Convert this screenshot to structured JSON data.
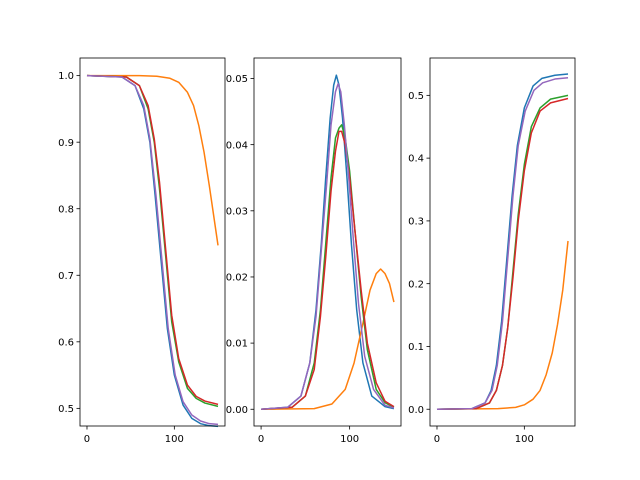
{
  "chart_data": [
    {
      "type": "line",
      "title": "",
      "xlabel": "",
      "ylabel": "",
      "xlim": [
        -8,
        158
      ],
      "ylim": [
        0.4735,
        1.0265
      ],
      "x_ticks": [
        0,
        100
      ],
      "x_tick_labels": [
        "0",
        "100"
      ],
      "y_ticks": [
        0.5,
        0.6,
        0.7,
        0.8,
        0.9,
        1.0
      ],
      "y_tick_labels": [
        "0.5",
        "0.6",
        "0.7",
        "0.8",
        "0.9",
        "1.0"
      ],
      "grid": false,
      "series": [
        {
          "color": "#1f77b4",
          "points": [
            [
              0,
              1.0
            ],
            [
              40,
              0.998
            ],
            [
              55,
              0.985
            ],
            [
              65,
              0.95
            ],
            [
              72,
              0.9
            ],
            [
              78,
              0.82
            ],
            [
              85,
              0.72
            ],
            [
              92,
              0.62
            ],
            [
              100,
              0.55
            ],
            [
              110,
              0.505
            ],
            [
              120,
              0.485
            ],
            [
              130,
              0.477
            ],
            [
              140,
              0.474
            ],
            [
              150,
              0.473
            ]
          ]
        },
        {
          "color": "#ff7f0e",
          "points": [
            [
              0,
              1.0
            ],
            [
              60,
              1.0
            ],
            [
              80,
              0.999
            ],
            [
              95,
              0.996
            ],
            [
              105,
              0.99
            ],
            [
              115,
              0.975
            ],
            [
              122,
              0.955
            ],
            [
              128,
              0.925
            ],
            [
              134,
              0.885
            ],
            [
              140,
              0.835
            ],
            [
              145,
              0.79
            ],
            [
              150,
              0.745
            ]
          ]
        },
        {
          "color": "#2ca02c",
          "points": [
            [
              0,
              1.0
            ],
            [
              45,
              0.998
            ],
            [
              60,
              0.985
            ],
            [
              70,
              0.95
            ],
            [
              77,
              0.9
            ],
            [
              83,
              0.83
            ],
            [
              90,
              0.73
            ],
            [
              97,
              0.63
            ],
            [
              105,
              0.57
            ],
            [
              115,
              0.53
            ],
            [
              125,
              0.515
            ],
            [
              135,
              0.508
            ],
            [
              150,
              0.503
            ]
          ]
        },
        {
          "color": "#d62728",
          "points": [
            [
              0,
              1.0
            ],
            [
              45,
              0.998
            ],
            [
              60,
              0.985
            ],
            [
              70,
              0.955
            ],
            [
              77,
              0.905
            ],
            [
              83,
              0.84
            ],
            [
              90,
              0.74
            ],
            [
              97,
              0.64
            ],
            [
              105,
              0.575
            ],
            [
              115,
              0.535
            ],
            [
              125,
              0.518
            ],
            [
              135,
              0.511
            ],
            [
              150,
              0.506
            ]
          ]
        },
        {
          "color": "#9467bd",
          "points": [
            [
              0,
              1.0
            ],
            [
              40,
              0.998
            ],
            [
              55,
              0.985
            ],
            [
              65,
              0.955
            ],
            [
              72,
              0.905
            ],
            [
              79,
              0.82
            ],
            [
              86,
              0.72
            ],
            [
              93,
              0.62
            ],
            [
              101,
              0.55
            ],
            [
              110,
              0.51
            ],
            [
              120,
              0.49
            ],
            [
              130,
              0.481
            ],
            [
              140,
              0.477
            ],
            [
              150,
              0.476
            ]
          ]
        }
      ]
    },
    {
      "type": "line",
      "title": "",
      "xlabel": "",
      "ylabel": "",
      "xlim": [
        -8,
        158
      ],
      "ylim": [
        -0.00253,
        0.0531
      ],
      "x_ticks": [
        0,
        100
      ],
      "x_tick_labels": [
        "0",
        "100"
      ],
      "y_ticks": [
        0.0,
        0.01,
        0.02,
        0.03,
        0.04,
        0.05
      ],
      "y_tick_labels": [
        "0.00",
        "0.01",
        "0.02",
        "0.03",
        "0.04",
        "0.05"
      ],
      "grid": false,
      "series": [
        {
          "color": "#1f77b4",
          "points": [
            [
              0,
              0
            ],
            [
              30,
              0.0003
            ],
            [
              45,
              0.002
            ],
            [
              55,
              0.007
            ],
            [
              62,
              0.015
            ],
            [
              68,
              0.025
            ],
            [
              73,
              0.035
            ],
            [
              78,
              0.044
            ],
            [
              82,
              0.049
            ],
            [
              85,
              0.0505
            ],
            [
              88,
              0.049
            ],
            [
              92,
              0.044
            ],
            [
              97,
              0.035
            ],
            [
              102,
              0.025
            ],
            [
              108,
              0.015
            ],
            [
              115,
              0.007
            ],
            [
              125,
              0.002
            ],
            [
              140,
              0.0004
            ],
            [
              150,
              0.0001
            ]
          ]
        },
        {
          "color": "#ff7f0e",
          "points": [
            [
              0,
              0
            ],
            [
              60,
              0.0001
            ],
            [
              80,
              0.0008
            ],
            [
              95,
              0.003
            ],
            [
              105,
              0.007
            ],
            [
              115,
              0.013
            ],
            [
              123,
              0.018
            ],
            [
              130,
              0.0205
            ],
            [
              135,
              0.0212
            ],
            [
              140,
              0.0205
            ],
            [
              145,
              0.019
            ],
            [
              150,
              0.0162
            ]
          ]
        },
        {
          "color": "#2ca02c",
          "points": [
            [
              0,
              0
            ],
            [
              35,
              0.0003
            ],
            [
              50,
              0.002
            ],
            [
              60,
              0.007
            ],
            [
              67,
              0.015
            ],
            [
              73,
              0.025
            ],
            [
              79,
              0.035
            ],
            [
              84,
              0.041
            ],
            [
              88,
              0.0425
            ],
            [
              91,
              0.043
            ],
            [
              95,
              0.041
            ],
            [
              100,
              0.036
            ],
            [
              106,
              0.027
            ],
            [
              113,
              0.017
            ],
            [
              120,
              0.009
            ],
            [
              130,
              0.003
            ],
            [
              140,
              0.001
            ],
            [
              150,
              0.0003
            ]
          ]
        },
        {
          "color": "#d62728",
          "points": [
            [
              0,
              0
            ],
            [
              35,
              0.0003
            ],
            [
              50,
              0.002
            ],
            [
              60,
              0.006
            ],
            [
              67,
              0.014
            ],
            [
              73,
              0.023
            ],
            [
              79,
              0.033
            ],
            [
              84,
              0.039
            ],
            [
              88,
              0.042
            ],
            [
              91,
              0.042
            ],
            [
              95,
              0.04
            ],
            [
              100,
              0.035
            ],
            [
              106,
              0.027
            ],
            [
              113,
              0.018
            ],
            [
              120,
              0.01
            ],
            [
              130,
              0.004
            ],
            [
              140,
              0.0012
            ],
            [
              150,
              0.0004
            ]
          ]
        },
        {
          "color": "#9467bd",
          "points": [
            [
              0,
              0
            ],
            [
              30,
              0.0003
            ],
            [
              45,
              0.002
            ],
            [
              55,
              0.007
            ],
            [
              62,
              0.014
            ],
            [
              68,
              0.024
            ],
            [
              74,
              0.034
            ],
            [
              79,
              0.043
            ],
            [
              84,
              0.048
            ],
            [
              87,
              0.0492
            ],
            [
              90,
              0.048
            ],
            [
              94,
              0.043
            ],
            [
              99,
              0.035
            ],
            [
              104,
              0.026
            ],
            [
              110,
              0.016
            ],
            [
              117,
              0.008
            ],
            [
              127,
              0.003
            ],
            [
              140,
              0.0006
            ],
            [
              150,
              0.0002
            ]
          ]
        }
      ]
    },
    {
      "type": "line",
      "title": "",
      "xlabel": "",
      "ylabel": "",
      "xlim": [
        -8,
        158
      ],
      "ylim": [
        -0.0267,
        0.5595
      ],
      "x_ticks": [
        0,
        100
      ],
      "x_tick_labels": [
        "0",
        "100"
      ],
      "y_ticks": [
        0.0,
        0.1,
        0.2,
        0.3,
        0.4,
        0.5
      ],
      "y_tick_labels": [
        "0.0",
        "0.1",
        "0.2",
        "0.3",
        "0.4",
        "0.5"
      ],
      "grid": false,
      "series": [
        {
          "color": "#1f77b4",
          "points": [
            [
              0,
              0
            ],
            [
              40,
              0.001
            ],
            [
              55,
              0.01
            ],
            [
              62,
              0.03
            ],
            [
              68,
              0.07
            ],
            [
              74,
              0.14
            ],
            [
              80,
              0.24
            ],
            [
              86,
              0.34
            ],
            [
              92,
              0.42
            ],
            [
              100,
              0.48
            ],
            [
              110,
              0.515
            ],
            [
              120,
              0.527
            ],
            [
              135,
              0.532
            ],
            [
              150,
              0.534
            ]
          ]
        },
        {
          "color": "#ff7f0e",
          "points": [
            [
              0,
              0
            ],
            [
              70,
              0.001
            ],
            [
              90,
              0.003
            ],
            [
              100,
              0.007
            ],
            [
              110,
              0.016
            ],
            [
              118,
              0.03
            ],
            [
              125,
              0.055
            ],
            [
              132,
              0.09
            ],
            [
              138,
              0.135
            ],
            [
              144,
              0.19
            ],
            [
              150,
              0.268
            ]
          ]
        },
        {
          "color": "#2ca02c",
          "points": [
            [
              0,
              0
            ],
            [
              45,
              0.001
            ],
            [
              60,
              0.01
            ],
            [
              68,
              0.03
            ],
            [
              75,
              0.07
            ],
            [
              81,
              0.13
            ],
            [
              87,
              0.22
            ],
            [
              93,
              0.31
            ],
            [
              100,
              0.39
            ],
            [
              108,
              0.45
            ],
            [
              118,
              0.48
            ],
            [
              130,
              0.494
            ],
            [
              150,
              0.5
            ]
          ]
        },
        {
          "color": "#d62728",
          "points": [
            [
              0,
              0
            ],
            [
              45,
              0.001
            ],
            [
              60,
              0.01
            ],
            [
              68,
              0.03
            ],
            [
              75,
              0.07
            ],
            [
              81,
              0.13
            ],
            [
              87,
              0.21
            ],
            [
              93,
              0.3
            ],
            [
              100,
              0.38
            ],
            [
              108,
              0.44
            ],
            [
              118,
              0.475
            ],
            [
              130,
              0.488
            ],
            [
              150,
              0.495
            ]
          ]
        },
        {
          "color": "#9467bd",
          "points": [
            [
              0,
              0
            ],
            [
              40,
              0.001
            ],
            [
              55,
              0.01
            ],
            [
              63,
              0.03
            ],
            [
              69,
              0.07
            ],
            [
              75,
              0.14
            ],
            [
              81,
              0.24
            ],
            [
              87,
              0.34
            ],
            [
              93,
              0.42
            ],
            [
              101,
              0.475
            ],
            [
              111,
              0.508
            ],
            [
              121,
              0.52
            ],
            [
              135,
              0.526
            ],
            [
              150,
              0.528
            ]
          ]
        }
      ]
    }
  ]
}
